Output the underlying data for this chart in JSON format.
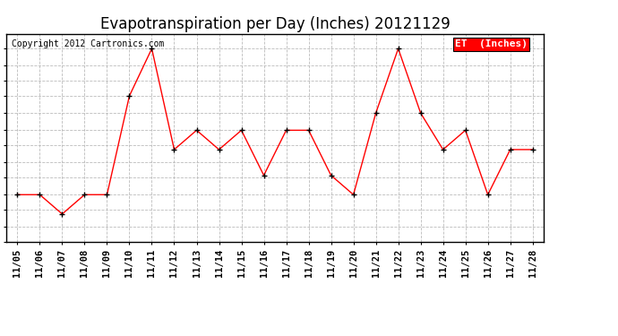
{
  "title": "Evapotranspiration per Day (Inches) 20121129",
  "copyright": "Copyright 2012 Cartronics.com",
  "legend_label": "ET  (Inches)",
  "dates": [
    "11/05",
    "11/06",
    "11/07",
    "11/08",
    "11/09",
    "11/10",
    "11/11",
    "11/12",
    "11/13",
    "11/14",
    "11/15",
    "11/16",
    "11/17",
    "11/18",
    "11/19",
    "11/20",
    "11/21",
    "11/22",
    "11/23",
    "11/24",
    "11/25",
    "11/26",
    "11/27",
    "11/28"
  ],
  "values": [
    0.022,
    0.022,
    0.013,
    0.022,
    0.022,
    0.068,
    0.09,
    0.043,
    0.052,
    0.043,
    0.052,
    0.031,
    0.052,
    0.052,
    0.031,
    0.022,
    0.06,
    0.09,
    0.06,
    0.043,
    0.052,
    0.022,
    0.043,
    0.043
  ],
  "ylim": [
    0.0,
    0.097
  ],
  "yticks": [
    0.0,
    0.007,
    0.015,
    0.022,
    0.03,
    0.037,
    0.045,
    0.052,
    0.06,
    0.068,
    0.075,
    0.082,
    0.09
  ],
  "line_color": "#ff0000",
  "marker_color": "#000000",
  "bg_color": "#ffffff",
  "grid_color": "#bbbbbb",
  "title_fontsize": 12,
  "copyright_fontsize": 7,
  "tick_fontsize": 7.5,
  "legend_bg": "#ff0000",
  "legend_text_color": "#ffffff",
  "legend_fontsize": 8
}
